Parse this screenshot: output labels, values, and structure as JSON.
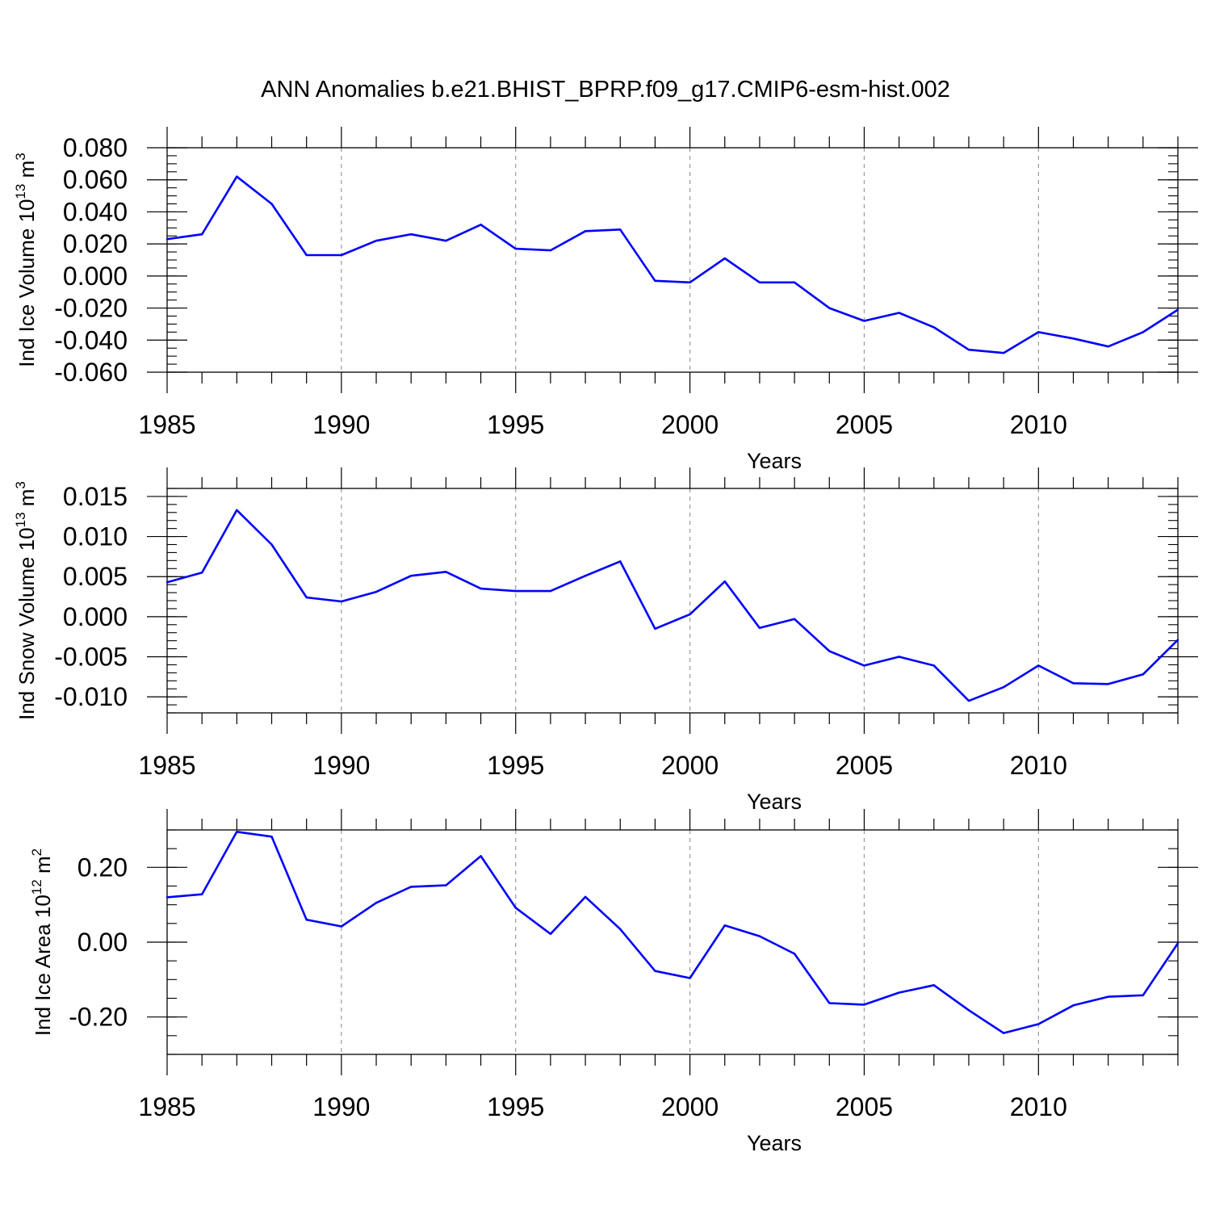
{
  "title": "ANN Anomalies b.e21.BHIST_BPRP.f09_g17.CMIP6-esm-hist.002",
  "colors": {
    "line": "#0000ff",
    "axis": "#000000",
    "grid": "#999999"
  },
  "chart_data": [
    {
      "type": "line",
      "ylabel_main": "Ind Ice Volume 10",
      "ylabel_exp": "13",
      "ylabel_unit": " m",
      "ylabel_unit_exp": "3",
      "xlabel": "Years",
      "xlim": [
        1985,
        2014
      ],
      "ylim": [
        -0.06,
        0.08
      ],
      "yticks": [
        -0.06,
        -0.04,
        -0.02,
        0.0,
        0.02,
        0.04,
        0.06,
        0.08
      ],
      "ytick_labels": [
        "-0.060",
        "-0.040",
        "-0.020",
        "0.000",
        "0.020",
        "0.040",
        "0.060",
        "0.080"
      ],
      "yminor_step": 0.005,
      "xticks": [
        1985,
        1990,
        1995,
        2000,
        2005,
        2010
      ],
      "xtick_labels": [
        "1985",
        "1990",
        "1995",
        "2000",
        "2005",
        "2010"
      ],
      "grid_x": [
        1990,
        1995,
        2000,
        2005,
        2010
      ],
      "x": [
        1985,
        1986,
        1987,
        1988,
        1989,
        1990,
        1991,
        1992,
        1993,
        1994,
        1995,
        1996,
        1997,
        1998,
        1999,
        2000,
        2001,
        2002,
        2003,
        2004,
        2005,
        2006,
        2007,
        2008,
        2009,
        2010,
        2011,
        2012,
        2013,
        2014
      ],
      "values": [
        0.023,
        0.026,
        0.062,
        0.045,
        0.013,
        0.013,
        0.022,
        0.026,
        0.022,
        0.032,
        0.017,
        0.016,
        0.028,
        0.029,
        -0.003,
        -0.004,
        0.011,
        -0.004,
        -0.004,
        -0.02,
        -0.028,
        -0.023,
        -0.032,
        -0.046,
        -0.048,
        -0.035,
        -0.039,
        -0.044,
        -0.035,
        -0.021
      ]
    },
    {
      "type": "line",
      "ylabel_main": "Ind Snow Volume 10",
      "ylabel_exp": "13",
      "ylabel_unit": " m",
      "ylabel_unit_exp": "3",
      "xlabel": "Years",
      "xlim": [
        1985,
        2014
      ],
      "ylim": [
        -0.012,
        0.016
      ],
      "yticks": [
        -0.01,
        -0.005,
        0.0,
        0.005,
        0.01,
        0.015
      ],
      "ytick_labels": [
        "-0.010",
        "-0.005",
        "0.000",
        "0.005",
        "0.010",
        "0.015"
      ],
      "yminor_step": 0.001,
      "xticks": [
        1985,
        1990,
        1995,
        2000,
        2005,
        2010
      ],
      "xtick_labels": [
        "1985",
        "1990",
        "1995",
        "2000",
        "2005",
        "2010"
      ],
      "grid_x": [
        1990,
        1995,
        2000,
        2005,
        2010
      ],
      "x": [
        1985,
        1986,
        1987,
        1988,
        1989,
        1990,
        1991,
        1992,
        1993,
        1994,
        1995,
        1996,
        1997,
        1998,
        1999,
        2000,
        2001,
        2002,
        2003,
        2004,
        2005,
        2006,
        2007,
        2008,
        2009,
        2010,
        2011,
        2012,
        2013,
        2014
      ],
      "values": [
        0.0043,
        0.0055,
        0.0133,
        0.009,
        0.0024,
        0.0019,
        0.0031,
        0.0051,
        0.0056,
        0.0035,
        0.0032,
        0.0032,
        0.0051,
        0.0069,
        -0.0015,
        0.0003,
        0.0044,
        -0.0014,
        -0.0003,
        -0.0043,
        -0.0061,
        -0.005,
        -0.0061,
        -0.0105,
        -0.0088,
        -0.0061,
        -0.0083,
        -0.0084,
        -0.0072,
        -0.0029
      ]
    },
    {
      "type": "line",
      "ylabel_main": "Ind Ice Area 10",
      "ylabel_exp": "12",
      "ylabel_unit": " m",
      "ylabel_unit_exp": "2",
      "xlabel": "Years",
      "xlim": [
        1985,
        2014
      ],
      "ylim": [
        -0.3,
        0.3
      ],
      "yticks": [
        -0.2,
        0.0,
        0.2
      ],
      "ytick_labels": [
        "-0.20",
        "0.00",
        "0.20"
      ],
      "yminor_step": 0.05,
      "xticks": [
        1985,
        1990,
        1995,
        2000,
        2005,
        2010
      ],
      "xtick_labels": [
        "1985",
        "1990",
        "1995",
        "2000",
        "2005",
        "2010"
      ],
      "grid_x": [
        1990,
        1995,
        2000,
        2005,
        2010
      ],
      "x": [
        1985,
        1986,
        1987,
        1988,
        1989,
        1990,
        1991,
        1992,
        1993,
        1994,
        1995,
        1996,
        1997,
        1998,
        1999,
        2000,
        2001,
        2002,
        2003,
        2004,
        2005,
        2006,
        2007,
        2008,
        2009,
        2010,
        2011,
        2012,
        2013,
        2014
      ],
      "values": [
        0.12,
        0.128,
        0.295,
        0.282,
        0.06,
        0.042,
        0.105,
        0.148,
        0.152,
        0.23,
        0.092,
        0.022,
        0.121,
        0.035,
        -0.077,
        -0.096,
        0.045,
        0.016,
        -0.031,
        -0.163,
        -0.167,
        -0.135,
        -0.115,
        -0.182,
        -0.243,
        -0.219,
        -0.169,
        -0.146,
        -0.142,
        -0.003
      ]
    }
  ]
}
